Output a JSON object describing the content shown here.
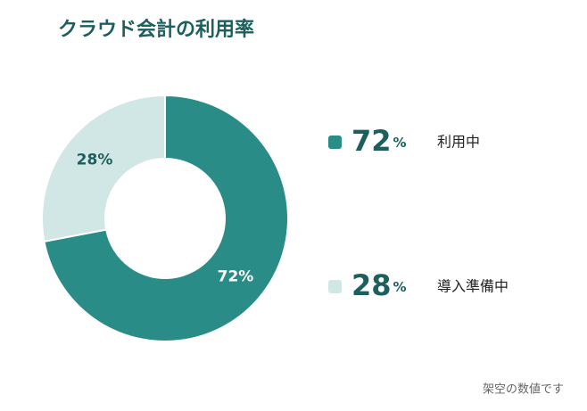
{
  "chart_data": {
    "type": "pie",
    "title": "クラウド会計の利用率",
    "categories": [
      "利用中",
      "導入準備中"
    ],
    "values": [
      72,
      28
    ],
    "value_labels": [
      "72%",
      "28%"
    ],
    "value_unit": "%",
    "colors": [
      "#2a8c87",
      "#d1e7e5"
    ],
    "label_colors": [
      "#ffffff",
      "#1d5f5c"
    ],
    "note": "架空の数値です"
  }
}
